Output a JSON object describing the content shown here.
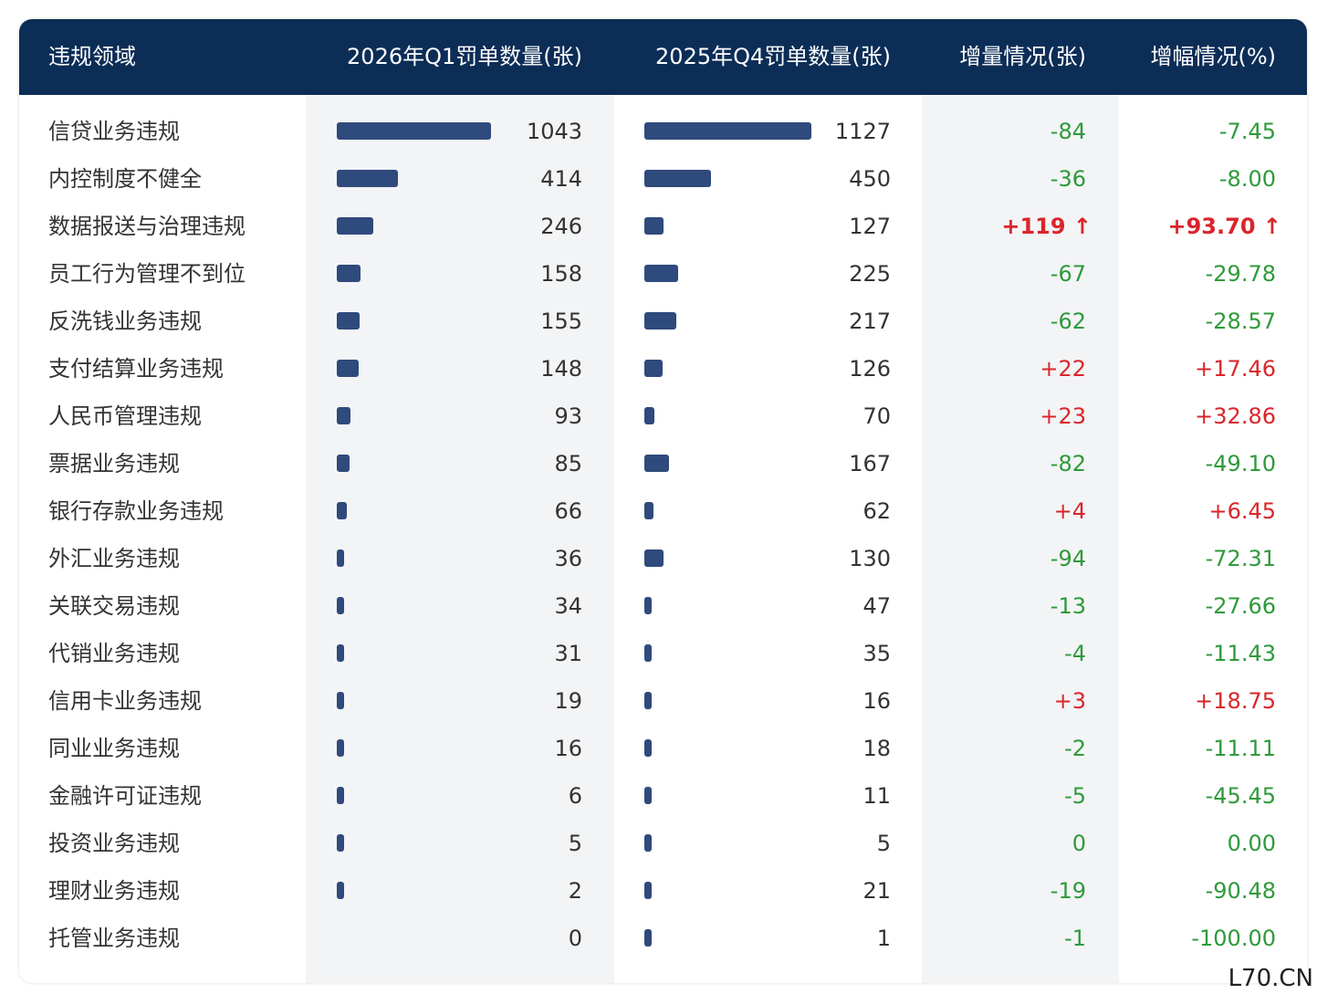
{
  "header": [
    "违规领域",
    "2026年Q1罚单数量(张)",
    "2025年Q4罚单数量(张)",
    "增量情况(张)",
    "增幅情况(%)"
  ],
  "table": {
    "rows": [
      [
        "信贷业务违规",
        1043,
        1127,
        "-84",
        "-7.45"
      ],
      [
        "内控制度不健全",
        414,
        450,
        "-36",
        "-8.00"
      ],
      [
        "数据报送与治理违规",
        246,
        127,
        "+119 ↑",
        "+93.70 ↑"
      ],
      [
        "员工行为管理不到位",
        158,
        225,
        "-67",
        "-29.78"
      ],
      [
        "反洗钱业务违规",
        155,
        217,
        "-62",
        "-28.57"
      ],
      [
        "支付结算业务违规",
        148,
        126,
        "+22",
        "+17.46"
      ],
      [
        "人民币管理违规",
        93,
        70,
        "+23",
        "+32.86"
      ],
      [
        "票据业务违规",
        85,
        167,
        "-82",
        "-49.10"
      ],
      [
        "银行存款业务违规",
        66,
        62,
        "+4",
        "+6.45"
      ],
      [
        "外汇业务违规",
        36,
        130,
        "-94",
        "-72.31"
      ],
      [
        "关联交易违规",
        34,
        47,
        "-13",
        "-27.66"
      ],
      [
        "代销业务违规",
        31,
        35,
        "-4",
        "-11.43"
      ],
      [
        "信用卡业务违规",
        19,
        16,
        "+3",
        "+18.75"
      ],
      [
        "同业业务违规",
        16,
        18,
        "-2",
        "-11.11"
      ],
      [
        "金融许可证违规",
        6,
        11,
        "-5",
        "-45.45"
      ],
      [
        "投资业务违规",
        5,
        5,
        "0",
        "0.00"
      ],
      [
        "理财业务违规",
        2,
        21,
        "-19",
        "-90.48"
      ],
      [
        "托管业务违规",
        0,
        1,
        "-1",
        "-100.00"
      ]
    ]
  },
  "watermark": "L70.CN"
}
